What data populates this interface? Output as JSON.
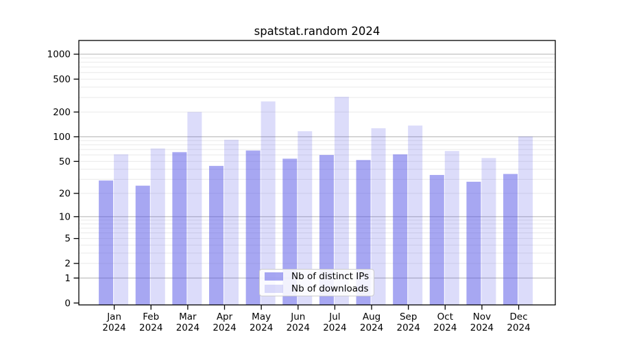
{
  "chart_data": {
    "type": "bar",
    "title": "spatstat.random 2024",
    "xlabel": "",
    "ylabel": "",
    "scale": "log10(x+1)",
    "ylim": [
      0,
      1300
    ],
    "grid": true,
    "legend_position": "bottom-center",
    "categories": [
      "Jan",
      "Feb",
      "Mar",
      "Apr",
      "May",
      "Jun",
      "Jul",
      "Aug",
      "Sep",
      "Oct",
      "Nov",
      "Dec"
    ],
    "x_sublabel": "2024",
    "y_ticks": [
      1000,
      500,
      200,
      100,
      50,
      20,
      10,
      5,
      2,
      1,
      0
    ],
    "series": [
      {
        "name": "Nb of distinct IPs",
        "color": "rgba(80,80,230,0.5)",
        "values": [
          29,
          25,
          65,
          44,
          68,
          54,
          60,
          52,
          61,
          34,
          28,
          35
        ]
      },
      {
        "name": "Nb of downloads",
        "color": "rgba(80,80,230,0.2)",
        "values": [
          61,
          72,
          200,
          92,
          269,
          117,
          306,
          127,
          137,
          67,
          55,
          101
        ]
      }
    ],
    "colors": {
      "axis": "#000000",
      "major_grid": "#b0b0b0",
      "minor_grid": "#e9e9e9",
      "text": "#000000",
      "legend_border": "#cccccc"
    }
  }
}
